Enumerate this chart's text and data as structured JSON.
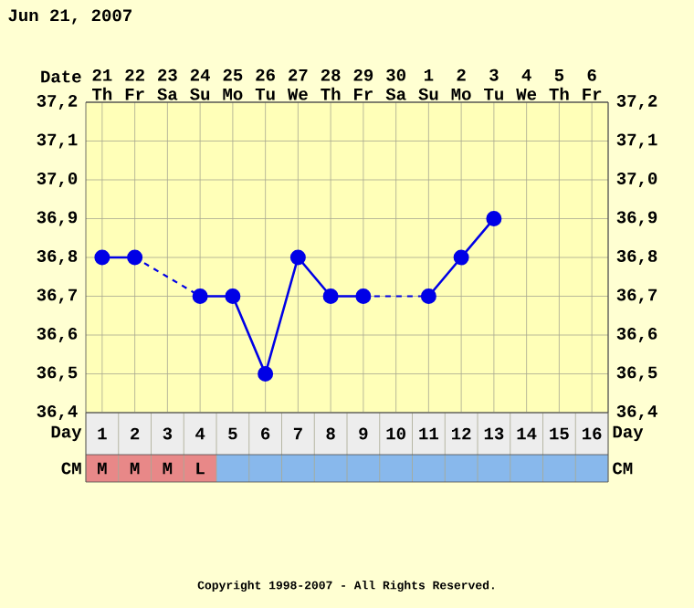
{
  "chart_data": {
    "type": "line",
    "title": "Jun 21, 2007",
    "xlabel": "Day",
    "x2label": "Date",
    "x": [
      1,
      2,
      3,
      4,
      5,
      6,
      7,
      8,
      9,
      10,
      11,
      12,
      13
    ],
    "xlim": [
      0.5,
      16.5
    ],
    "xticks": [
      1,
      2,
      3,
      4,
      5,
      6,
      7,
      8,
      9,
      10,
      11,
      12,
      13,
      14,
      15,
      16
    ],
    "x2lim": [
      "2007-06-20T12:00",
      "2007-07-06T12:00"
    ],
    "x2ticks": [
      {
        "value": "2007-06-21",
        "label": "21 Th"
      },
      {
        "value": "2007-06-22",
        "label": "22 Fr"
      },
      {
        "value": "2007-06-23",
        "label": "23 Sa"
      },
      {
        "value": "2007-06-24",
        "label": "24 Su"
      },
      {
        "value": "2007-06-25",
        "label": "25 Mo"
      },
      {
        "value": "2007-06-26",
        "label": "26 Tu"
      },
      {
        "value": "2007-06-27",
        "label": "27 We"
      },
      {
        "value": "2007-06-28",
        "label": "28 Th"
      },
      {
        "value": "2007-06-29",
        "label": "29 Fr"
      },
      {
        "value": "2007-06-30",
        "label": "30 Sa"
      },
      {
        "value": "2007-07-01",
        "label": "1 Su"
      },
      {
        "value": "2007-07-02",
        "label": "2 Mo"
      },
      {
        "value": "2007-07-03",
        "label": "3 Tu"
      },
      {
        "value": "2007-07-04",
        "label": "4 We"
      },
      {
        "value": "2007-07-05",
        "label": "5 Th"
      },
      {
        "value": "2007-07-06",
        "label": "6 Fr"
      }
    ],
    "ylim": [
      36.4,
      37.2
    ],
    "yticks": [
      {
        "value": 36.4,
        "label": "36,4"
      },
      {
        "value": 36.5,
        "label": "36,5"
      },
      {
        "value": 36.6,
        "label": "36,6"
      },
      {
        "value": 36.7,
        "label": "36,7"
      },
      {
        "value": 36.8,
        "label": "36,8"
      },
      {
        "value": 36.9,
        "label": "36,9"
      },
      {
        "value": 37.0,
        "label": "37,0"
      },
      {
        "value": 37.1,
        "label": "37,1"
      },
      {
        "value": 37.2,
        "label": "37,2"
      }
    ],
    "y2lim": [
      36.4,
      37.2
    ],
    "y2ticks": [
      {
        "value": 36.4,
        "label": "36,4"
      },
      {
        "value": 36.5,
        "label": "36,5"
      },
      {
        "value": 36.6,
        "label": "36,6"
      },
      {
        "value": 36.7,
        "label": "36,7"
      },
      {
        "value": 36.8,
        "label": "36,8"
      },
      {
        "value": 36.9,
        "label": "36,9"
      },
      {
        "value": 37.0,
        "label": "37,0"
      },
      {
        "value": 37.1,
        "label": "37,1"
      },
      {
        "value": 37.2,
        "label": "37,2"
      }
    ],
    "series": [
      {
        "color": "#0000e6",
        "values": [
          36.8,
          36.8,
          null,
          36.7,
          36.7,
          36.5,
          36.8,
          36.7,
          36.7,
          null,
          36.7,
          36.8,
          36.9
        ]
      }
    ],
    "marker": "circle",
    "grid": true,
    "annotations": [
      "CM",
      "M",
      "M",
      "M",
      "L",
      "Copyright 1998-2007 - All Rights Reserved."
    ]
  }
}
